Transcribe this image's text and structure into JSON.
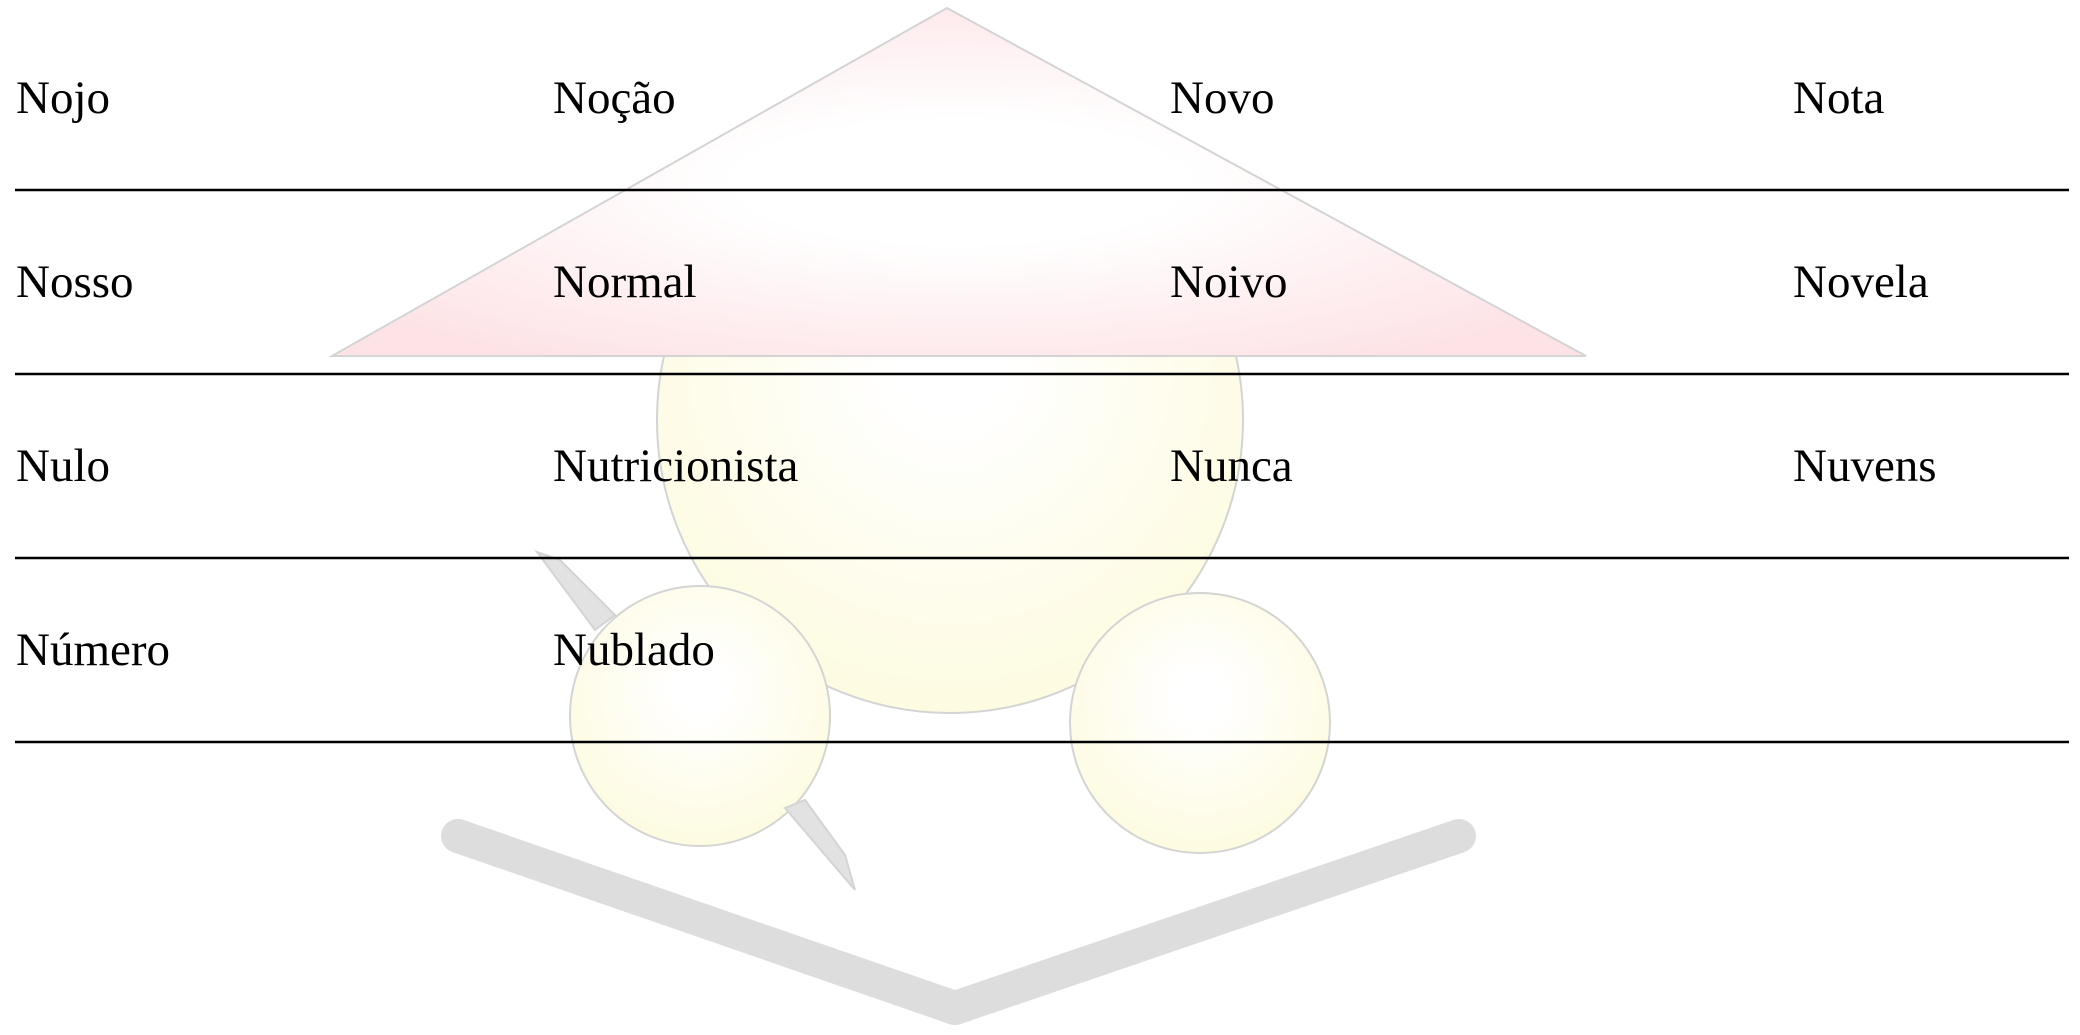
{
  "table": {
    "rows": [
      [
        "Nojo",
        "Noção",
        "Novo",
        "Nota"
      ],
      [
        "Nosso",
        "Normal",
        "Noivo",
        "Novela"
      ],
      [
        "Nulo",
        "Nutricionista",
        "Nunca",
        "Nuvens"
      ],
      [
        "Número",
        "Nublado"
      ]
    ]
  }
}
